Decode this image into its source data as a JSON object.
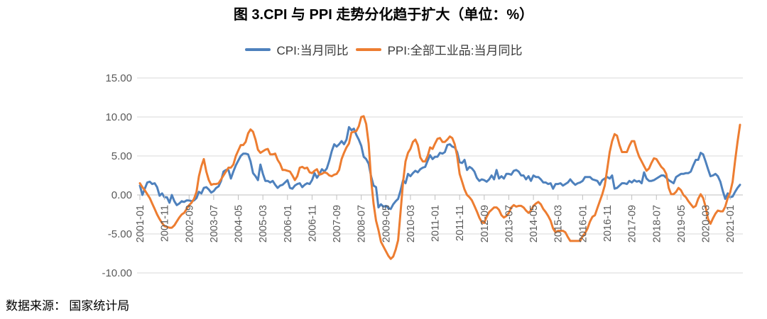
{
  "header": {
    "title": "图 3.CPI 与 PPI 走势分化趋于扩大（单位：%）"
  },
  "footer": {
    "source": "数据来源： 国家统计局"
  },
  "colors": {
    "cpi_line": "#4E81BD",
    "ppi_line": "#ED7D31",
    "gridline": "#D9D9D9",
    "axis": "#BFBFBF",
    "tick_label": "#595959"
  },
  "chart_data": {
    "type": "line",
    "title": "图 3.CPI 与 PPI 走势分化趋于扩大（单位：%）",
    "unit": "%",
    "x_frequency": "monthly",
    "x_start": "2001-01",
    "x_end": "2021-05",
    "grid": "horizontal",
    "legend_position": "top",
    "ylim": [
      -10,
      15
    ],
    "y_ticks": [
      15,
      10,
      5,
      0,
      -5,
      -10
    ],
    "y_tick_labels": [
      "15.00",
      "10.00",
      "5.00",
      "0.00",
      "-5.00",
      "-10.00"
    ],
    "x_tick_interval_months": 10,
    "tick_labels": [
      "2001-01",
      "2001-11",
      "2002-09",
      "2003-07",
      "2004-05",
      "2005-03",
      "2006-01",
      "2006-11",
      "2007-09",
      "2008-07",
      "2009-05",
      "2010-03",
      "2011-01",
      "2011-11",
      "2012-09",
      "2013-07",
      "2014-05",
      "2015-03",
      "2016-01",
      "2016-11",
      "2017-09",
      "2018-07",
      "2019-05",
      "2020-03",
      "2021-01"
    ],
    "series": [
      {
        "name": "CPI:当月同比",
        "color": "#4E81BD",
        "values": [
          1.2,
          0.0,
          0.8,
          1.6,
          1.7,
          1.4,
          1.5,
          1.0,
          -0.1,
          0.2,
          -0.3,
          -0.3,
          -1.0,
          0.0,
          -0.8,
          -1.3,
          -1.1,
          -0.8,
          -0.9,
          -0.7,
          -0.7,
          -0.8,
          -0.7,
          -0.4,
          0.4,
          0.2,
          0.9,
          1.0,
          0.7,
          0.3,
          0.5,
          0.9,
          1.1,
          1.8,
          3.0,
          3.2,
          3.2,
          2.1,
          3.0,
          3.8,
          4.4,
          5.0,
          5.3,
          5.3,
          5.2,
          4.3,
          2.8,
          2.4,
          1.9,
          3.9,
          2.7,
          1.8,
          1.8,
          1.6,
          1.8,
          1.3,
          0.9,
          1.2,
          1.3,
          1.6,
          1.9,
          0.9,
          0.8,
          1.2,
          1.4,
          1.5,
          1.0,
          1.3,
          1.5,
          1.4,
          1.9,
          2.8,
          2.2,
          2.7,
          3.3,
          3.0,
          3.4,
          4.4,
          5.6,
          6.5,
          6.2,
          6.5,
          6.9,
          6.5,
          7.1,
          8.7,
          8.3,
          8.5,
          7.7,
          7.1,
          6.3,
          4.9,
          4.6,
          4.0,
          2.4,
          1.2,
          1.0,
          -1.6,
          -1.2,
          -1.5,
          -1.4,
          -1.7,
          -1.8,
          -1.2,
          -0.8,
          -0.5,
          0.6,
          1.9,
          1.5,
          2.7,
          2.4,
          2.8,
          3.1,
          2.9,
          3.3,
          3.5,
          3.6,
          4.4,
          5.1,
          4.6,
          4.9,
          4.9,
          5.4,
          5.3,
          5.5,
          6.4,
          6.5,
          6.2,
          6.1,
          5.5,
          4.2,
          4.1,
          4.5,
          3.2,
          3.6,
          3.4,
          3.0,
          2.2,
          1.8,
          2.0,
          1.9,
          1.7,
          2.0,
          2.5,
          2.0,
          3.2,
          2.1,
          2.4,
          2.1,
          2.7,
          2.7,
          2.6,
          3.1,
          3.2,
          3.0,
          2.5,
          2.5,
          2.0,
          2.4,
          1.8,
          2.5,
          2.3,
          2.3,
          2.0,
          1.6,
          1.6,
          1.4,
          1.5,
          0.8,
          1.4,
          1.4,
          1.5,
          1.2,
          1.4,
          1.6,
          2.0,
          1.6,
          1.3,
          1.5,
          1.6,
          1.8,
          2.3,
          2.3,
          2.3,
          2.0,
          1.9,
          1.8,
          1.3,
          1.9,
          2.1,
          2.3,
          2.1,
          2.5,
          0.8,
          0.9,
          1.2,
          1.5,
          1.5,
          1.4,
          1.8,
          1.6,
          1.9,
          1.7,
          1.8,
          1.5,
          2.9,
          2.1,
          1.8,
          1.8,
          1.9,
          2.1,
          2.3,
          2.5,
          2.5,
          2.2,
          1.9,
          1.7,
          1.5,
          2.3,
          2.5,
          2.7,
          2.7,
          2.8,
          2.8,
          3.0,
          3.8,
          4.5,
          4.5,
          5.4,
          5.2,
          4.3,
          3.3,
          2.4,
          2.5,
          2.7,
          2.4,
          1.7,
          0.5,
          -0.5,
          0.2,
          -0.3,
          -0.2,
          0.4,
          0.9,
          1.3
        ]
      },
      {
        "name": "PPI:全部工业品:当月同比",
        "color": "#ED7D31",
        "values": [
          1.5,
          1.0,
          0.6,
          0.1,
          -0.4,
          -1.1,
          -1.8,
          -2.5,
          -3.1,
          -3.6,
          -4.0,
          -4.1,
          -4.2,
          -4.2,
          -3.9,
          -3.4,
          -2.9,
          -2.5,
          -2.3,
          -1.8,
          -1.3,
          -1.0,
          -0.5,
          0.4,
          2.4,
          3.7,
          4.6,
          3.0,
          1.9,
          1.3,
          1.4,
          1.4,
          1.5,
          2.0,
          2.5,
          3.0,
          3.5,
          3.5,
          3.9,
          5.0,
          5.7,
          6.4,
          6.4,
          6.8,
          7.9,
          8.4,
          8.1,
          7.1,
          5.8,
          5.4,
          5.6,
          5.8,
          5.9,
          5.2,
          5.2,
          5.3,
          4.5,
          4.0,
          3.2,
          3.2,
          3.1,
          3.0,
          2.5,
          1.9,
          2.4,
          3.5,
          3.6,
          3.4,
          3.5,
          2.9,
          2.8,
          3.1,
          3.3,
          2.6,
          2.7,
          2.9,
          2.8,
          2.5,
          2.4,
          2.6,
          2.7,
          3.2,
          4.6,
          5.4,
          6.1,
          6.6,
          8.0,
          8.1,
          8.2,
          8.8,
          10.0,
          10.1,
          9.1,
          6.6,
          2.0,
          -1.1,
          -3.3,
          -4.5,
          -6.0,
          -6.6,
          -7.2,
          -7.8,
          -8.2,
          -7.9,
          -7.0,
          -5.8,
          -2.1,
          1.7,
          4.3,
          5.4,
          5.9,
          6.8,
          7.1,
          6.4,
          4.8,
          4.3,
          4.3,
          5.0,
          6.1,
          5.9,
          6.6,
          7.2,
          7.3,
          6.8,
          6.8,
          7.1,
          7.5,
          7.3,
          6.5,
          5.0,
          2.7,
          1.7,
          0.7,
          0.0,
          -0.3,
          -0.7,
          -1.4,
          -2.1,
          -2.9,
          -3.5,
          -3.6,
          -2.8,
          -2.2,
          -1.9,
          -1.6,
          -1.6,
          -1.9,
          -2.6,
          -2.9,
          -2.7,
          -2.3,
          -1.6,
          -1.3,
          -1.5,
          -1.4,
          -1.4,
          -1.6,
          -2.0,
          -2.3,
          -2.0,
          -1.4,
          -1.1,
          -0.9,
          -1.2,
          -1.8,
          -2.2,
          -2.7,
          -3.3,
          -4.3,
          -4.8,
          -4.6,
          -4.6,
          -4.6,
          -4.8,
          -5.4,
          -5.9,
          -5.9,
          -5.9,
          -5.9,
          -5.9,
          -5.3,
          -4.9,
          -4.3,
          -3.4,
          -2.8,
          -2.6,
          -1.7,
          -0.8,
          0.1,
          1.2,
          3.3,
          5.5,
          6.9,
          7.8,
          7.6,
          6.4,
          5.5,
          5.5,
          5.5,
          6.3,
          6.9,
          6.9,
          5.8,
          4.9,
          4.3,
          3.7,
          3.1,
          3.4,
          4.1,
          4.7,
          4.6,
          4.1,
          3.6,
          3.3,
          2.7,
          0.9,
          0.1,
          0.1,
          0.4,
          0.9,
          0.6,
          0.0,
          -0.3,
          -0.8,
          -1.2,
          -1.6,
          -1.4,
          -0.5,
          0.1,
          -0.4,
          -1.5,
          -3.1,
          -3.7,
          -3.0,
          -2.4,
          -2.0,
          -2.1,
          -2.1,
          -1.5,
          -0.4,
          0.3,
          1.7,
          4.4,
          6.8,
          9.0
        ]
      }
    ]
  }
}
